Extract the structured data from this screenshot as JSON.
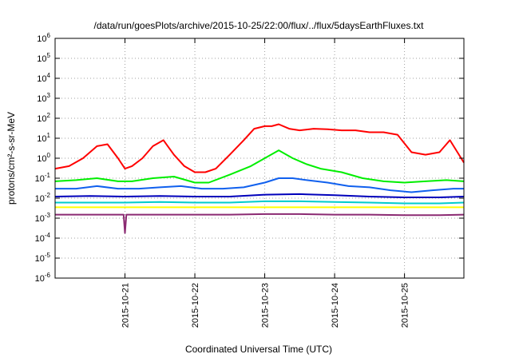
{
  "chart_data": {
    "type": "line",
    "title": "/data/run/goesPlots/archive/2015-10-25/22:00/flux/../flux/5daysEarthFluxes.txt",
    "xlabel": "Coordinated Universal Time (UTC)",
    "ylabel": "protons/cm²-s-sr-MeV",
    "yscale": "log",
    "ylim": [
      1e-06,
      1000000.0
    ],
    "xlim": [
      0,
      5.85
    ],
    "x_unit": "days since 2015-10-20 00:00 UTC",
    "grid": true,
    "y_ticks": [
      {
        "value": 1e-06,
        "base": "10",
        "exp": "-6"
      },
      {
        "value": 1e-05,
        "base": "10",
        "exp": "-5"
      },
      {
        "value": 0.0001,
        "base": "10",
        "exp": "-4"
      },
      {
        "value": 0.001,
        "base": "10",
        "exp": "-3"
      },
      {
        "value": 0.01,
        "base": "10",
        "exp": "-2"
      },
      {
        "value": 0.1,
        "base": "10",
        "exp": "-1"
      },
      {
        "value": 1.0,
        "base": "10",
        "exp": "0"
      },
      {
        "value": 10.0,
        "base": "10",
        "exp": "1"
      },
      {
        "value": 100.0,
        "base": "10",
        "exp": "2"
      },
      {
        "value": 1000.0,
        "base": "10",
        "exp": "3"
      },
      {
        "value": 10000.0,
        "base": "10",
        "exp": "4"
      },
      {
        "value": 100000.0,
        "base": "10",
        "exp": "5"
      },
      {
        "value": 1000000.0,
        "base": "10",
        "exp": "6"
      }
    ],
    "x_ticks": [
      {
        "value": 1,
        "label": "2015-10-21"
      },
      {
        "value": 2,
        "label": "2015-10-22"
      },
      {
        "value": 3,
        "label": "2015-10-23"
      },
      {
        "value": 4,
        "label": "2015-10-24"
      },
      {
        "value": 5,
        "label": "2015-10-25"
      }
    ],
    "series": [
      {
        "color": "#ff0000",
        "x": [
          0,
          0.2,
          0.4,
          0.6,
          0.75,
          0.9,
          1.0,
          1.1,
          1.25,
          1.4,
          1.55,
          1.7,
          1.85,
          2.0,
          2.15,
          2.3,
          2.5,
          2.7,
          2.85,
          3.0,
          3.1,
          3.2,
          3.35,
          3.5,
          3.7,
          3.9,
          4.1,
          4.3,
          4.5,
          4.7,
          4.9,
          5.1,
          5.3,
          5.5,
          5.65,
          5.85
        ],
        "y": [
          0.3,
          0.4,
          1.0,
          4.0,
          5.0,
          1.0,
          0.3,
          0.4,
          1.0,
          4.0,
          8.0,
          1.5,
          0.4,
          0.2,
          0.2,
          0.3,
          1.5,
          8.0,
          30,
          40,
          40,
          50,
          30,
          25,
          30,
          28,
          25,
          25,
          20,
          20,
          15,
          2.0,
          1.5,
          2.0,
          8.0,
          0.6
        ]
      },
      {
        "color": "#00ee00",
        "x": [
          0,
          0.3,
          0.6,
          0.9,
          1.1,
          1.4,
          1.7,
          2.0,
          2.2,
          2.5,
          2.8,
          3.0,
          3.2,
          3.4,
          3.6,
          3.8,
          4.1,
          4.4,
          4.7,
          5.0,
          5.3,
          5.6,
          5.85
        ],
        "y": [
          0.07,
          0.08,
          0.1,
          0.07,
          0.07,
          0.1,
          0.12,
          0.06,
          0.06,
          0.15,
          0.4,
          1.0,
          2.5,
          1.0,
          0.5,
          0.3,
          0.2,
          0.1,
          0.07,
          0.06,
          0.07,
          0.08,
          0.07
        ]
      },
      {
        "color": "#1060ee",
        "x": [
          0,
          0.3,
          0.6,
          0.9,
          1.2,
          1.5,
          1.8,
          2.1,
          2.4,
          2.7,
          3.0,
          3.2,
          3.4,
          3.6,
          3.9,
          4.2,
          4.5,
          4.8,
          5.1,
          5.4,
          5.7,
          5.85
        ],
        "y": [
          0.03,
          0.03,
          0.04,
          0.03,
          0.03,
          0.035,
          0.04,
          0.03,
          0.03,
          0.035,
          0.06,
          0.1,
          0.1,
          0.08,
          0.06,
          0.04,
          0.035,
          0.025,
          0.02,
          0.025,
          0.03,
          0.03
        ]
      },
      {
        "color": "#0000bb",
        "x": [
          0,
          0.5,
          1.0,
          1.5,
          2.0,
          2.5,
          3.0,
          3.5,
          4.0,
          4.5,
          5.0,
          5.5,
          5.85
        ],
        "y": [
          0.012,
          0.013,
          0.012,
          0.013,
          0.012,
          0.012,
          0.015,
          0.016,
          0.014,
          0.012,
          0.011,
          0.011,
          0.012
        ]
      },
      {
        "color": "#00cccc",
        "x": [
          0,
          0.5,
          1.0,
          1.5,
          2.0,
          2.5,
          3.0,
          3.5,
          4.0,
          4.5,
          5.0,
          5.5,
          5.85
        ],
        "y": [
          0.006,
          0.006,
          0.006,
          0.0065,
          0.006,
          0.006,
          0.007,
          0.007,
          0.0065,
          0.006,
          0.0055,
          0.0055,
          0.006
        ]
      },
      {
        "color": "#ffff00",
        "x": [
          0,
          0.5,
          1.0,
          1.5,
          2.0,
          2.5,
          3.0,
          3.5,
          4.0,
          4.5,
          5.0,
          5.5,
          5.85
        ],
        "y": [
          0.0035,
          0.0035,
          0.0035,
          0.0035,
          0.0035,
          0.0035,
          0.0035,
          0.0035,
          0.0035,
          0.0035,
          0.0035,
          0.0035,
          0.0035
        ]
      },
      {
        "color": "#8b2a72",
        "x": [
          0,
          0.5,
          0.98,
          1.0,
          1.02,
          1.5,
          2.0,
          2.5,
          3.0,
          3.5,
          4.0,
          4.5,
          5.0,
          5.5,
          5.85
        ],
        "y": [
          0.0015,
          0.0015,
          0.0015,
          0.00018,
          0.0015,
          0.0015,
          0.0015,
          0.0015,
          0.0016,
          0.0016,
          0.0015,
          0.0015,
          0.0014,
          0.0014,
          0.0015
        ]
      }
    ]
  }
}
